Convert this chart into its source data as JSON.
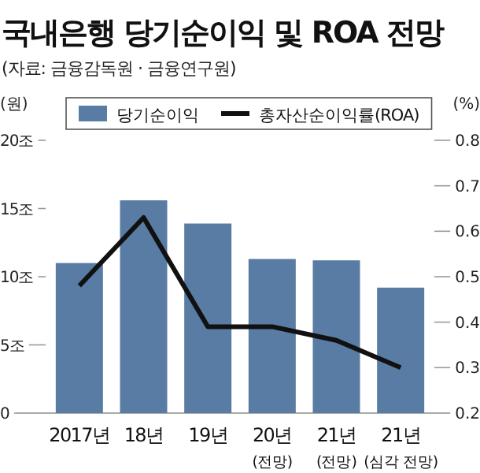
{
  "chart_data": {
    "type": "bar",
    "title": "국내은행 당기순이익 및 ROA 전망",
    "subtitle": "(자료: 금융감독원 · 금융연구원)",
    "ylabel": "(원)",
    "y2label": "(%)",
    "categories": [
      "2017년",
      "18년",
      "19년",
      "20년 (전망)",
      "21년 (전망)",
      "21년 (심각 전망)"
    ],
    "series": [
      {
        "name": "당기순이익",
        "color": "#587ca4",
        "values": [
          11.0,
          15.6,
          13.9,
          11.3,
          11.2,
          9.2
        ]
      },
      {
        "name": "총자산순이익률(ROA)",
        "type": "line",
        "axis": "y2",
        "color": "#111111",
        "values": [
          0.48,
          0.63,
          0.39,
          0.39,
          0.36,
          0.3
        ]
      }
    ],
    "ylim": [
      0,
      20
    ],
    "yticks": [
      0,
      {
        "value": 5,
        "label": "5조"
      },
      {
        "value": 10,
        "label": "10조"
      },
      {
        "value": 15,
        "label": "15조"
      },
      {
        "value": 20,
        "label": "20조"
      }
    ],
    "y2lim": [
      0.2,
      0.8
    ],
    "y2ticks": [
      0.2,
      0.3,
      0.4,
      0.5,
      0.6,
      0.7,
      0.8
    ],
    "legend": "top"
  }
}
